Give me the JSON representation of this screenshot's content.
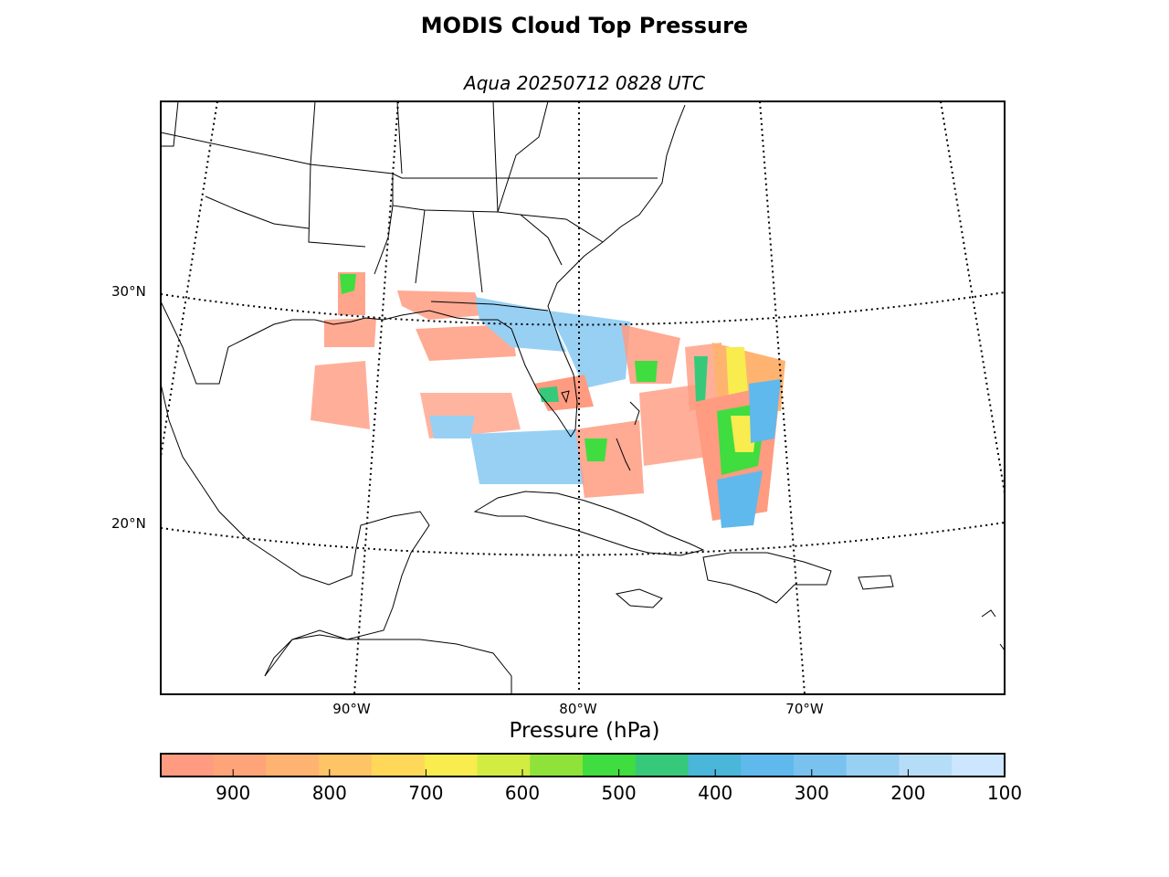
{
  "title": "MODIS Cloud Top Pressure",
  "subtitle": "Aqua 20250712 0828 UTC",
  "map": {
    "latitude_labels": [
      "30°N",
      "20°N"
    ],
    "longitude_labels": [
      "90°W",
      "80°W",
      "70°W"
    ],
    "graticule": "dotted",
    "data_extent": "Gulf of Mexico, Florida and western Atlantic swath"
  },
  "colorbar": {
    "title": "Pressure (hPa)",
    "tick_labels": [
      "900",
      "800",
      "700",
      "600",
      "500",
      "400",
      "300",
      "200",
      "100"
    ],
    "range_hpa": [
      975,
      100
    ],
    "colors": [
      "#ff9b80",
      "#ffa478",
      "#ffb370",
      "#ffc466",
      "#ffd85a",
      "#f8ec4e",
      "#d2ec42",
      "#8fe23a",
      "#3fdd3f",
      "#37c97a",
      "#4ab6d9",
      "#5fb9ec",
      "#79c2ef",
      "#98d0f4",
      "#b6ddf8",
      "#cce6ff"
    ]
  }
}
